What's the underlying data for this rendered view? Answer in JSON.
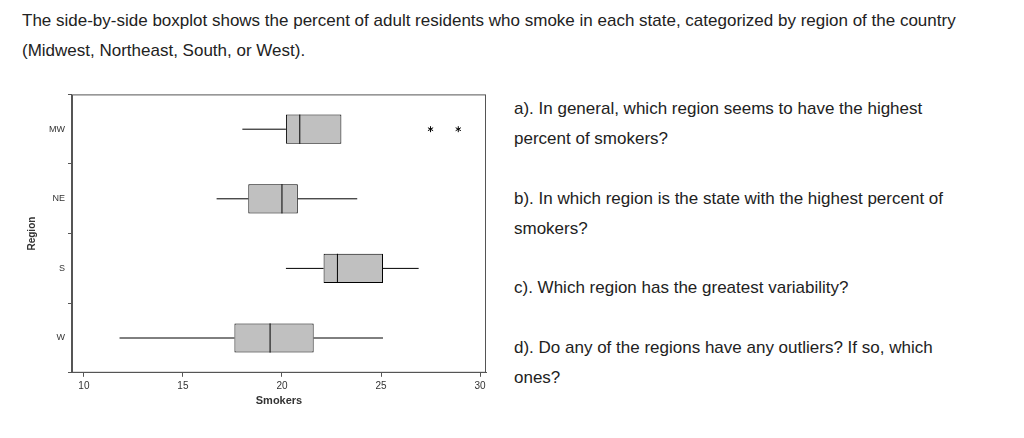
{
  "intro": "The side-by-side boxplot shows the percent of adult residents who smoke in each state, categorized by region of the country (Midwest, Northeast, South, or West).",
  "questions": [
    "a). In general, which region seems to have the highest percent of smokers?",
    "b). In which region is the state with the highest percent of smokers?",
    "c). Which region has the greatest variability?",
    "d). Do any of the regions have any outliers? If so, which ones?"
  ],
  "chart_data": {
    "type": "boxplot",
    "orientation": "horizontal",
    "x_label": "Smokers",
    "y_label": "Region",
    "categories": [
      "MW",
      "NE",
      "S",
      "W"
    ],
    "whisker_low": [
      18.0,
      16.7,
      20.2,
      11.8
    ],
    "q1": [
      20.2,
      18.3,
      22.1,
      17.6
    ],
    "median": [
      20.9,
      20.0,
      22.8,
      19.4
    ],
    "q3": [
      23.0,
      20.8,
      25.1,
      21.6
    ],
    "whisker_high": [
      23.0,
      23.8,
      26.9,
      25.1
    ],
    "outliers": [
      [
        27.5,
        28.9
      ],
      [],
      [],
      []
    ],
    "color": "#c0c0c0",
    "xlim": [
      9.4,
      30.3
    ],
    "xticks": [
      10,
      15,
      20,
      25,
      30
    ],
    "grid": false
  }
}
